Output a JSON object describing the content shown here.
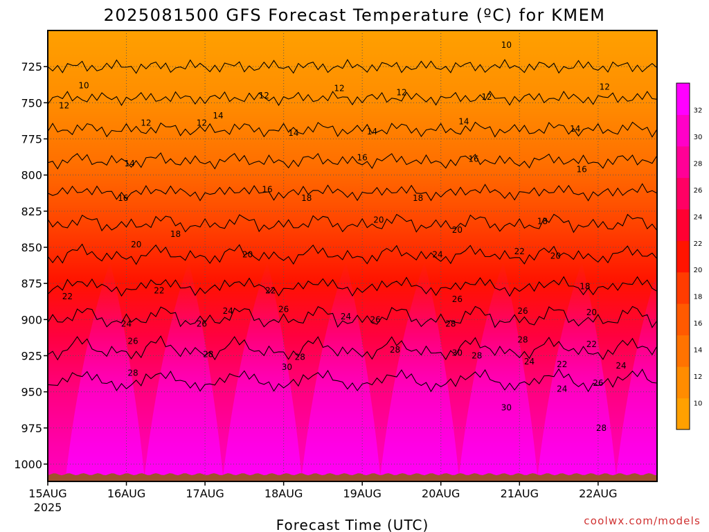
{
  "title": "2025081500 GFS Forecast Temperature (ºC) for KMEM",
  "credit": "coolwx.com/models",
  "colors": {
    "palette": [
      "#ffa000",
      "#ff8c00",
      "#ff7300",
      "#ff5a00",
      "#ff3c00",
      "#ff1400",
      "#ff0032",
      "#ff0064",
      "#ff0096",
      "#ff00c8",
      "#ff00ff"
    ],
    "ground": "#a0522d",
    "grid": "#555555",
    "contour": "#000000"
  },
  "chart_data": {
    "type": "heatmap",
    "xlabel": "Forecast Time (UTC)",
    "ylabel": "",
    "x_range_hours": [
      0,
      186
    ],
    "y_range_hpa": [
      700,
      1012
    ],
    "x_ticks": [
      {
        "label": "15AUG",
        "sub": "2025",
        "hour": 0
      },
      {
        "label": "16AUG",
        "hour": 24
      },
      {
        "label": "17AUG",
        "hour": 48
      },
      {
        "label": "18AUG",
        "hour": 72
      },
      {
        "label": "19AUG",
        "hour": 96
      },
      {
        "label": "20AUG",
        "hour": 120
      },
      {
        "label": "21AUG",
        "hour": 144
      },
      {
        "label": "22AUG",
        "hour": 168
      }
    ],
    "y_ticks": [
      725,
      750,
      775,
      800,
      825,
      850,
      875,
      900,
      925,
      950,
      975,
      1000
    ],
    "colorbar": {
      "ticks": [
        10,
        12,
        14,
        16,
        18,
        20,
        22,
        24,
        26,
        28,
        30,
        32
      ],
      "min": 8,
      "max": 34
    },
    "contour_levels": [
      10,
      12,
      14,
      16,
      18,
      20,
      22,
      24,
      26,
      28,
      30
    ],
    "contour_labels": [
      {
        "text": "10",
        "hour": 11,
        "p": 738
      },
      {
        "text": "10",
        "hour": 140,
        "p": 710
      },
      {
        "text": "12",
        "hour": 5,
        "p": 752
      },
      {
        "text": "12",
        "hour": 30,
        "p": 764
      },
      {
        "text": "12",
        "hour": 47,
        "p": 764
      },
      {
        "text": "12",
        "hour": 66,
        "p": 745
      },
      {
        "text": "12",
        "hour": 89,
        "p": 740
      },
      {
        "text": "12",
        "hour": 108,
        "p": 743
      },
      {
        "text": "12",
        "hour": 134,
        "p": 746
      },
      {
        "text": "12",
        "hour": 170,
        "p": 739
      },
      {
        "text": "14",
        "hour": 52,
        "p": 759
      },
      {
        "text": "14",
        "hour": 75,
        "p": 771
      },
      {
        "text": "14",
        "hour": 99,
        "p": 770
      },
      {
        "text": "14",
        "hour": 127,
        "p": 763
      },
      {
        "text": "14",
        "hour": 161,
        "p": 768
      },
      {
        "text": "14",
        "hour": 25,
        "p": 792
      },
      {
        "text": "16",
        "hour": 96,
        "p": 788
      },
      {
        "text": "16",
        "hour": 130,
        "p": 789
      },
      {
        "text": "16",
        "hour": 163,
        "p": 796
      },
      {
        "text": "16",
        "hour": 23,
        "p": 816
      },
      {
        "text": "16",
        "hour": 67,
        "p": 810
      },
      {
        "text": "18",
        "hour": 79,
        "p": 816
      },
      {
        "text": "18",
        "hour": 113,
        "p": 816
      },
      {
        "text": "18",
        "hour": 39,
        "p": 841
      },
      {
        "text": "18",
        "hour": 151,
        "p": 832
      },
      {
        "text": "18",
        "hour": 164,
        "p": 877
      },
      {
        "text": "20",
        "hour": 27,
        "p": 848
      },
      {
        "text": "20",
        "hour": 61,
        "p": 855
      },
      {
        "text": "20",
        "hour": 101,
        "p": 831
      },
      {
        "text": "20",
        "hour": 125,
        "p": 838
      },
      {
        "text": "20",
        "hour": 155,
        "p": 856
      },
      {
        "text": "20",
        "hour": 166,
        "p": 895
      },
      {
        "text": "22",
        "hour": 6,
        "p": 884
      },
      {
        "text": "22",
        "hour": 34,
        "p": 880
      },
      {
        "text": "22",
        "hour": 68,
        "p": 880
      },
      {
        "text": "22",
        "hour": 144,
        "p": 853
      },
      {
        "text": "22",
        "hour": 166,
        "p": 917
      },
      {
        "text": "22",
        "hour": 157,
        "p": 931
      },
      {
        "text": "24",
        "hour": 24,
        "p": 903
      },
      {
        "text": "24",
        "hour": 55,
        "p": 894
      },
      {
        "text": "24",
        "hour": 91,
        "p": 898
      },
      {
        "text": "24",
        "hour": 119,
        "p": 855
      },
      {
        "text": "24",
        "hour": 147,
        "p": 929
      },
      {
        "text": "24",
        "hour": 175,
        "p": 932
      },
      {
        "text": "24",
        "hour": 157,
        "p": 948
      },
      {
        "text": "26",
        "hour": 26,
        "p": 915
      },
      {
        "text": "26",
        "hour": 47,
        "p": 903
      },
      {
        "text": "26",
        "hour": 72,
        "p": 893
      },
      {
        "text": "26",
        "hour": 100,
        "p": 900
      },
      {
        "text": "26",
        "hour": 125,
        "p": 886
      },
      {
        "text": "26",
        "hour": 145,
        "p": 894
      },
      {
        "text": "26",
        "hour": 168,
        "p": 944
      },
      {
        "text": "28",
        "hour": 26,
        "p": 937
      },
      {
        "text": "28",
        "hour": 49,
        "p": 924
      },
      {
        "text": "28",
        "hour": 77,
        "p": 926
      },
      {
        "text": "28",
        "hour": 106,
        "p": 921
      },
      {
        "text": "28",
        "hour": 123,
        "p": 903
      },
      {
        "text": "28",
        "hour": 131,
        "p": 925
      },
      {
        "text": "28",
        "hour": 145,
        "p": 914
      },
      {
        "text": "28",
        "hour": 169,
        "p": 975
      },
      {
        "text": "30",
        "hour": 73,
        "p": 933
      },
      {
        "text": "30",
        "hour": 125,
        "p": 923
      },
      {
        "text": "30",
        "hour": 140,
        "p": 961
      }
    ]
  }
}
